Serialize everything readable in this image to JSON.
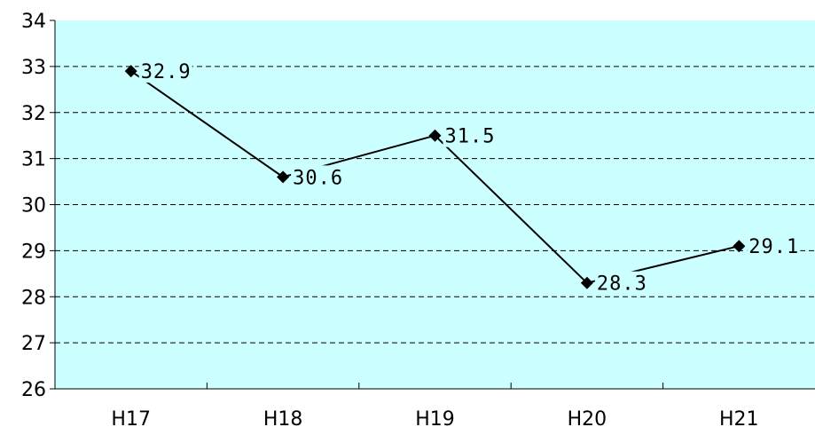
{
  "chart_data": {
    "type": "line",
    "title": "",
    "xlabel": "",
    "ylabel": "",
    "categories": [
      "H17",
      "H18",
      "H19",
      "H20",
      "H21"
    ],
    "series": [
      {
        "values": [
          32.9,
          30.6,
          31.5,
          28.3,
          29.1
        ],
        "data_labels": [
          "32.9",
          "30.6",
          "31.5",
          "28.3",
          "29.1"
        ],
        "color": "#000000",
        "marker": "diamond"
      }
    ],
    "ylim": [
      26,
      34
    ],
    "yticks": [
      "26",
      "27",
      "28",
      "29",
      "30",
      "31",
      "32",
      "33",
      "34"
    ],
    "grid": "horizontal-dashed",
    "legend": "none",
    "plot_background": "#ccffff"
  }
}
